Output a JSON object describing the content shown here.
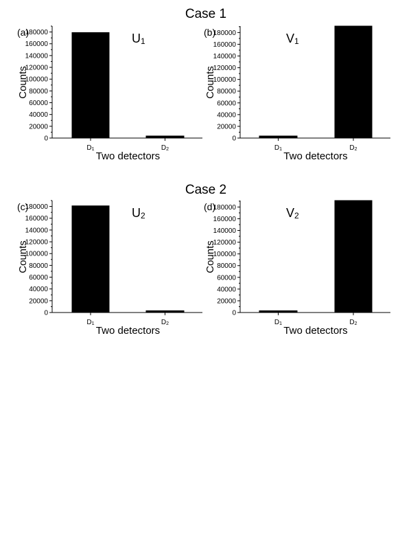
{
  "figure": {
    "case_titles": [
      "Case 1",
      "Case 2"
    ]
  },
  "chart_data": [
    {
      "type": "bar",
      "panel": "(a)",
      "operator": {
        "base": "U",
        "sub": "1"
      },
      "categories": [
        {
          "base": "D",
          "sub": "1"
        },
        {
          "base": "D",
          "sub": "2"
        }
      ],
      "values": [
        179000,
        3500
      ],
      "ylabel": "Counts",
      "xlabel": "Two detectors",
      "ylim": [
        0,
        190000
      ],
      "yticks": [
        0,
        20000,
        40000,
        60000,
        80000,
        100000,
        120000,
        140000,
        160000,
        180000
      ],
      "color": "#000000"
    },
    {
      "type": "bar",
      "panel": "(b)",
      "operator": {
        "base": "V",
        "sub": "1"
      },
      "categories": [
        {
          "base": "D",
          "sub": "1"
        },
        {
          "base": "D",
          "sub": "2"
        }
      ],
      "values": [
        3500,
        191000
      ],
      "ylabel": "Counts",
      "xlabel": "Two detectors",
      "ylim": [
        0,
        191000
      ],
      "yticks": [
        0,
        20000,
        40000,
        60000,
        80000,
        100000,
        120000,
        140000,
        160000,
        180000
      ],
      "color": "#000000"
    },
    {
      "type": "bar",
      "panel": "(c)",
      "operator": {
        "base": "U",
        "sub": "2"
      },
      "categories": [
        {
          "base": "D",
          "sub": "1"
        },
        {
          "base": "D",
          "sub": "2"
        }
      ],
      "values": [
        181000,
        3000
      ],
      "ylabel": "Counts",
      "xlabel": "Two detectors",
      "ylim": [
        0,
        190000
      ],
      "yticks": [
        0,
        20000,
        40000,
        60000,
        80000,
        100000,
        120000,
        140000,
        160000,
        180000
      ],
      "color": "#000000"
    },
    {
      "type": "bar",
      "panel": "(d)",
      "operator": {
        "base": "V",
        "sub": "2"
      },
      "categories": [
        {
          "base": "D",
          "sub": "1"
        },
        {
          "base": "D",
          "sub": "2"
        }
      ],
      "values": [
        3000,
        191000
      ],
      "ylabel": "Counts",
      "xlabel": "Two detectors",
      "ylim": [
        0,
        191000
      ],
      "yticks": [
        0,
        20000,
        40000,
        60000,
        80000,
        100000,
        120000,
        140000,
        160000,
        180000
      ],
      "color": "#000000"
    }
  ]
}
